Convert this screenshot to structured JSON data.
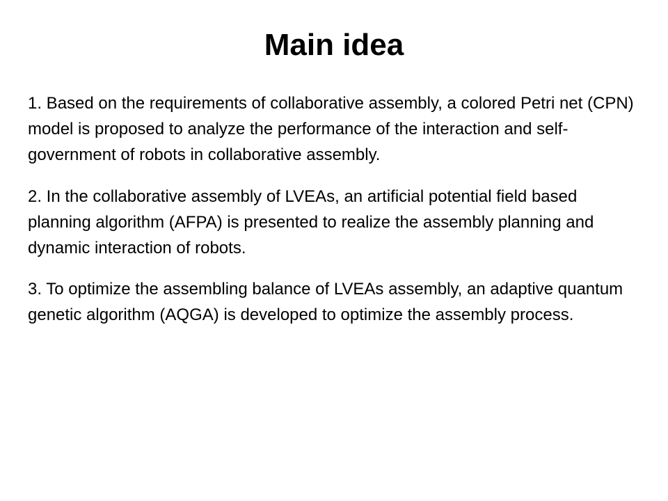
{
  "slide": {
    "title": "Main idea",
    "title_fontsize": 44,
    "title_fontweight": "bold",
    "body_fontsize": 24,
    "body_line_height": 1.55,
    "background_color": "#ffffff",
    "text_color": "#000000",
    "paragraphs": [
      "1. Based on the requirements of collaborative assembly, a colored Petri net (CPN) model is proposed to analyze the performance of the interaction and self-government of robots in collaborative assembly.",
      "2. In the collaborative assembly of LVEAs, an artificial potential field based planning algorithm (AFPA) is presented to realize the assembly planning and dynamic interaction of robots.",
      "3. To optimize the assembling balance of LVEAs assembly, an adaptive quantum genetic algorithm (AQGA) is developed to optimize the assembly process."
    ]
  }
}
